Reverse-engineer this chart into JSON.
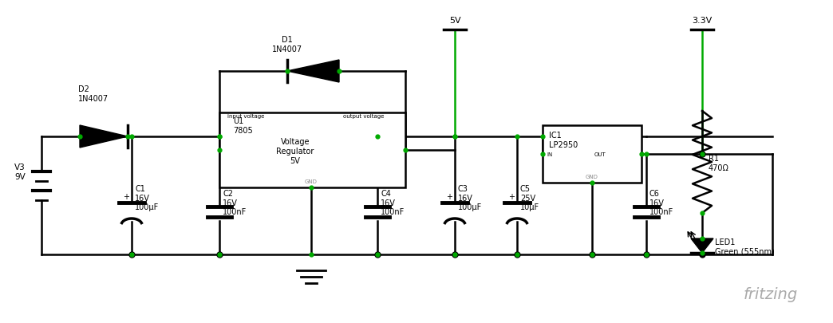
{
  "bg_color": "#ffffff",
  "wire_color": "#000000",
  "green_color": "#00aa00",
  "fritzing_text": "fritzing",
  "fritzing_color": "#aaaaaa",
  "components": {
    "V3": {
      "label": "V3\n9V"
    },
    "D2": {
      "label": "D2\n1N4007"
    },
    "C1": {
      "label": "C1\n16V\n100μF"
    },
    "D1": {
      "label": "D1\n1N4007"
    },
    "U1_label1": {
      "label": "U1"
    },
    "U1_label2": {
      "label": "7805"
    },
    "U1_label3": {
      "label": "Voltage"
    },
    "U1_label4": {
      "label": "Regulator"
    },
    "U1_label5": {
      "label": "5V"
    },
    "U1_in": {
      "label": "input voltage"
    },
    "U1_out": {
      "label": "output voltage"
    },
    "U1_gnd": {
      "label": "GND"
    },
    "C2": {
      "label": "C2\n16V\n100nF"
    },
    "C4": {
      "label": "C4\n16V\n100nF"
    },
    "C3": {
      "label": "C3\n16V\n100μF"
    },
    "IC1_label1": {
      "label": "IC1"
    },
    "IC1_label2": {
      "label": "LP2950"
    },
    "IC1_in": {
      "label": "IN"
    },
    "IC1_out_lbl": {
      "label": "OUT"
    },
    "IC1_gnd": {
      "label": "GND"
    },
    "C5": {
      "label": "C5\n25V\n10μF"
    },
    "C6": {
      "label": "C6\n16V\n100nF"
    },
    "R1": {
      "label": "R1\n470Ω"
    },
    "LED1": {
      "label": "LED1\nGreen (555nm)"
    },
    "pwr5v": {
      "label": "5V"
    },
    "pwr33v": {
      "label": "3.3V"
    }
  }
}
